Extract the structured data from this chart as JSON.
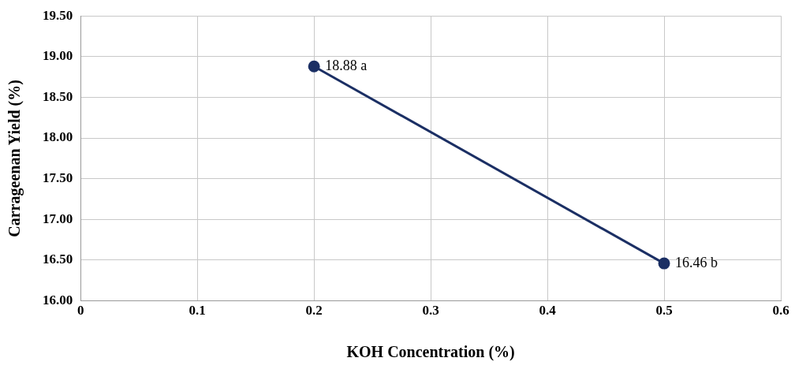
{
  "chart_data": {
    "type": "line",
    "xlabel": "KOH Concentration (%)",
    "ylabel": "Carrageenan Yield (%)",
    "x": [
      0.2,
      0.5
    ],
    "series": [
      {
        "color": "#1b2f64",
        "values": [
          18.88,
          16.46
        ],
        "value_labels": [
          "18.88 a",
          "16.46 b"
        ]
      }
    ],
    "xlim": [
      0,
      0.6
    ],
    "xticks": [
      0,
      0.1,
      0.2,
      0.3,
      0.4,
      0.5,
      0.6
    ],
    "ylim": [
      16,
      19.5
    ],
    "yticks": [
      {
        "value": 16,
        "label": "16.00"
      },
      {
        "value": 16.5,
        "label": "16.50"
      },
      {
        "value": 17,
        "label": "17.00"
      },
      {
        "value": 17.5,
        "label": "17.50"
      },
      {
        "value": 18,
        "label": "18.00"
      },
      {
        "value": 18.5,
        "label": "18.50"
      },
      {
        "value": 19,
        "label": "19.00"
      },
      {
        "value": 19.5,
        "label": "19.50"
      }
    ],
    "grid": true,
    "legend": false,
    "marker": "circle",
    "line_style": "solid"
  }
}
